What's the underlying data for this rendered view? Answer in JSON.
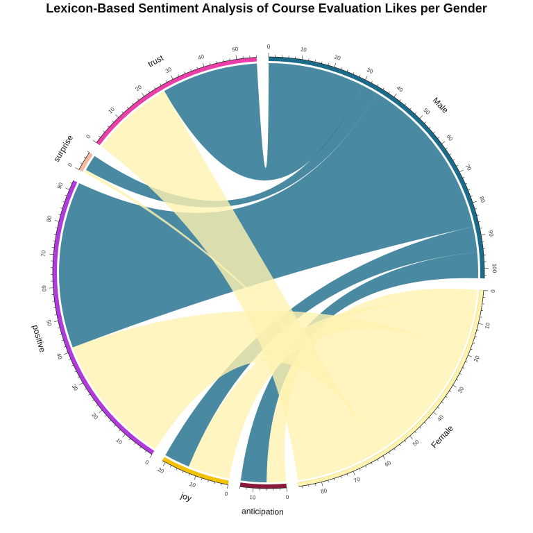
{
  "chart_data": {
    "type": "chord",
    "title": "Lexicon-Based Sentiment Analysis of Course Evaluation Likes per Gender",
    "sectors": [
      {
        "name": "Male",
        "total": 103,
        "color": "#1b6b8a",
        "tick_step": 10,
        "tick_max": 100
      },
      {
        "name": "Female",
        "total": 87,
        "color": "#fff3b0",
        "tick_step": 10,
        "tick_max": 80
      },
      {
        "name": "anticipation",
        "total": 14,
        "color": "#8b1a3a",
        "tick_step": 10,
        "tick_max": 10
      },
      {
        "name": "joy",
        "total": 21,
        "color": "#f2c200",
        "tick_step": 10,
        "tick_max": 20
      },
      {
        "name": "positive",
        "total": 93,
        "color": "#b03adb",
        "tick_step": 10,
        "tick_max": 90
      },
      {
        "name": "surprise",
        "total": 6,
        "color": "#f0b9a0",
        "tick_step": 10,
        "tick_max": 0
      },
      {
        "name": "trust",
        "total": 56,
        "color": "#ea3fa8",
        "tick_step": 10,
        "tick_max": 50
      }
    ],
    "links": [
      {
        "from": "Male",
        "to": "trust",
        "value": 30
      },
      {
        "from": "Male",
        "to": "surprise",
        "value": 5
      },
      {
        "from": "Male",
        "to": "positive",
        "value": 52
      },
      {
        "from": "Male",
        "to": "joy",
        "value": 8
      },
      {
        "from": "Male",
        "to": "anticipation",
        "value": 8
      },
      {
        "from": "Female",
        "to": "trust",
        "value": 26
      },
      {
        "from": "Female",
        "to": "surprise",
        "value": 1
      },
      {
        "from": "Female",
        "to": "positive",
        "value": 41
      },
      {
        "from": "Female",
        "to": "joy",
        "value": 13
      },
      {
        "from": "Female",
        "to": "anticipation",
        "value": 6
      }
    ],
    "link_colors": {
      "Male": "#1b6b8a",
      "Female": "#fff3b0"
    },
    "link_opacity": 0.8
  }
}
